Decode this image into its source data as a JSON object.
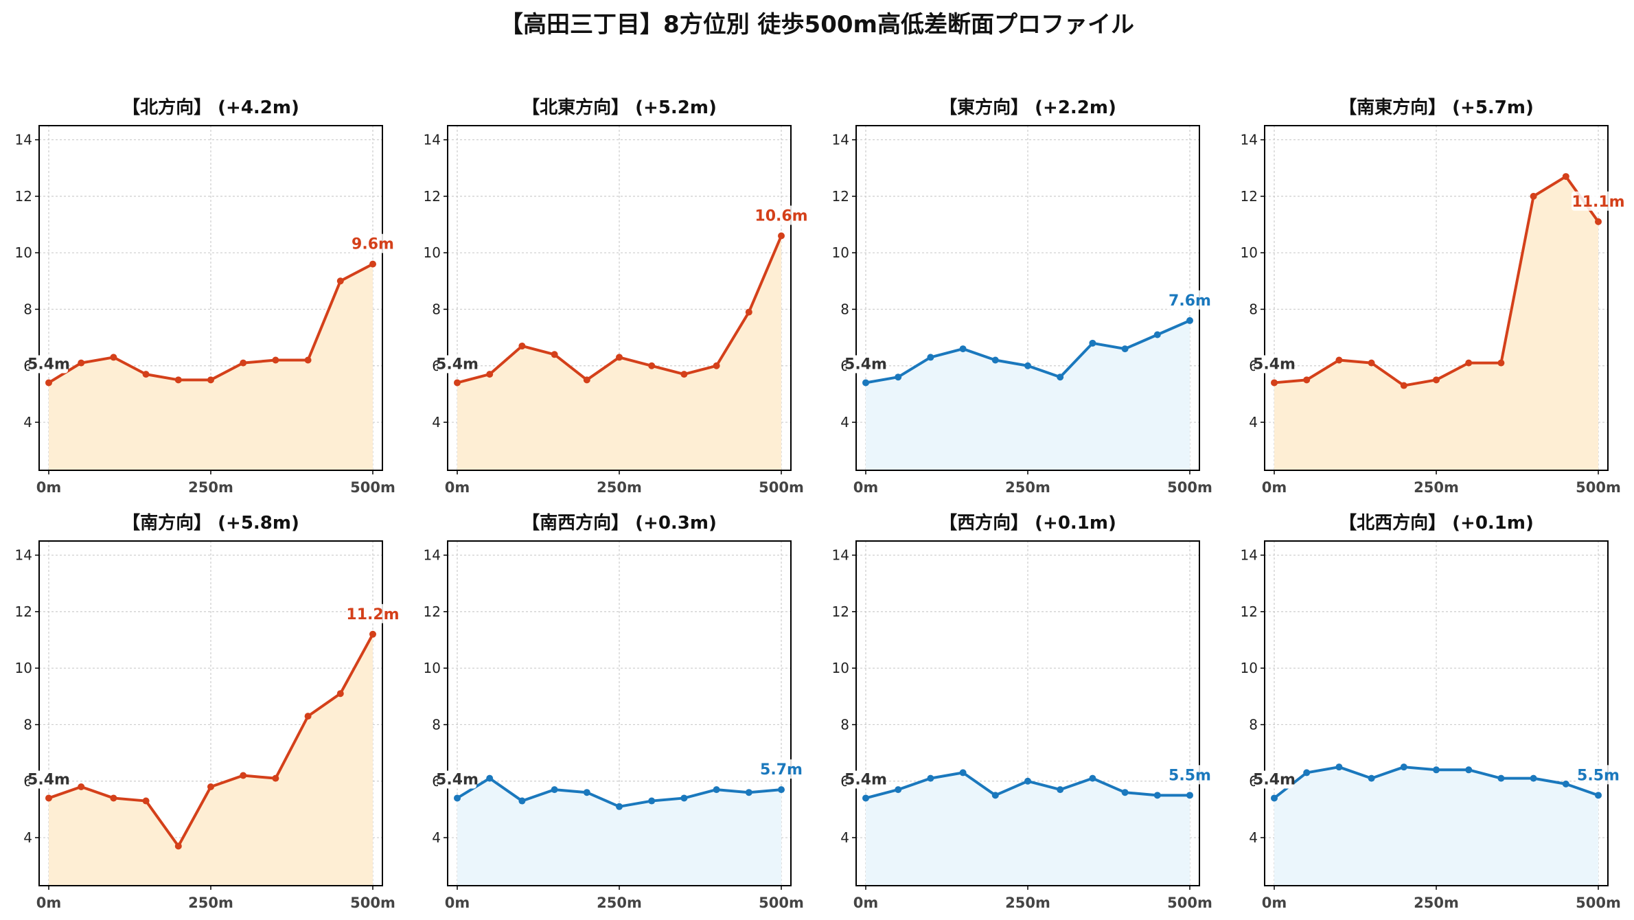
{
  "title": "【高田三丁目】8方位別 徒歩500m高低差断面プロファイル",
  "colors": {
    "up_line": "#d4401a",
    "up_fill": "#feeed4",
    "flat_line": "#1a78bd",
    "flat_fill": "#ebf6fc",
    "grid": "#cccccc",
    "start_label": "#333333"
  },
  "chart_data": [
    {
      "type": "area",
      "title": "【北方向】 (+4.2m)",
      "trend": "up",
      "x": [
        0,
        50,
        100,
        150,
        200,
        250,
        300,
        350,
        400,
        450,
        500
      ],
      "x_ticks": [
        "0m",
        "250m",
        "500m"
      ],
      "y_ticks": [
        "4",
        "6",
        "8",
        "10",
        "12",
        "14"
      ],
      "ylim": [
        2.3,
        14.5
      ],
      "values": [
        5.4,
        6.1,
        6.3,
        5.7,
        5.5,
        5.5,
        6.1,
        6.2,
        6.2,
        9.0,
        9.6
      ],
      "start_label": "5.4m",
      "end_label": "9.6m"
    },
    {
      "type": "area",
      "title": "【北東方向】 (+5.2m)",
      "trend": "up",
      "x": [
        0,
        50,
        100,
        150,
        200,
        250,
        300,
        350,
        400,
        450,
        500
      ],
      "x_ticks": [
        "0m",
        "250m",
        "500m"
      ],
      "y_ticks": [
        "4",
        "6",
        "8",
        "10",
        "12",
        "14"
      ],
      "ylim": [
        2.3,
        14.5
      ],
      "values": [
        5.4,
        5.7,
        6.7,
        6.4,
        5.5,
        6.3,
        6.0,
        5.7,
        6.0,
        7.9,
        10.6
      ],
      "start_label": "5.4m",
      "end_label": "10.6m"
    },
    {
      "type": "area",
      "title": "【東方向】 (+2.2m)",
      "trend": "flat",
      "x": [
        0,
        50,
        100,
        150,
        200,
        250,
        300,
        350,
        400,
        450,
        500
      ],
      "x_ticks": [
        "0m",
        "250m",
        "500m"
      ],
      "y_ticks": [
        "4",
        "6",
        "8",
        "10",
        "12",
        "14"
      ],
      "ylim": [
        2.3,
        14.5
      ],
      "values": [
        5.4,
        5.6,
        6.3,
        6.6,
        6.2,
        6.0,
        5.6,
        6.8,
        6.6,
        7.1,
        7.6
      ],
      "start_label": "5.4m",
      "end_label": "7.6m"
    },
    {
      "type": "area",
      "title": "【南東方向】 (+5.7m)",
      "trend": "up",
      "x": [
        0,
        50,
        100,
        150,
        200,
        250,
        300,
        350,
        400,
        450,
        500
      ],
      "x_ticks": [
        "0m",
        "250m",
        "500m"
      ],
      "y_ticks": [
        "4",
        "6",
        "8",
        "10",
        "12",
        "14"
      ],
      "ylim": [
        2.3,
        14.5
      ],
      "values": [
        5.4,
        5.5,
        6.2,
        6.1,
        5.3,
        5.5,
        6.1,
        6.1,
        12.0,
        12.7,
        11.1
      ],
      "start_label": "5.4m",
      "end_label": "11.1m"
    },
    {
      "type": "area",
      "title": "【南方向】 (+5.8m)",
      "trend": "up",
      "x": [
        0,
        50,
        100,
        150,
        200,
        250,
        300,
        350,
        400,
        450,
        500
      ],
      "x_ticks": [
        "0m",
        "250m",
        "500m"
      ],
      "y_ticks": [
        "4",
        "6",
        "8",
        "10",
        "12",
        "14"
      ],
      "ylim": [
        2.3,
        14.5
      ],
      "values": [
        5.4,
        5.8,
        5.4,
        5.3,
        3.7,
        5.8,
        6.2,
        6.1,
        8.3,
        9.1,
        11.2
      ],
      "start_label": "5.4m",
      "end_label": "11.2m"
    },
    {
      "type": "area",
      "title": "【南西方向】 (+0.3m)",
      "trend": "flat",
      "x": [
        0,
        50,
        100,
        150,
        200,
        250,
        300,
        350,
        400,
        450,
        500
      ],
      "x_ticks": [
        "0m",
        "250m",
        "500m"
      ],
      "y_ticks": [
        "4",
        "6",
        "8",
        "10",
        "12",
        "14"
      ],
      "ylim": [
        2.3,
        14.5
      ],
      "values": [
        5.4,
        6.1,
        5.3,
        5.7,
        5.6,
        5.1,
        5.3,
        5.4,
        5.7,
        5.6,
        5.7
      ],
      "start_label": "5.4m",
      "end_label": "5.7m"
    },
    {
      "type": "area",
      "title": "【西方向】 (+0.1m)",
      "trend": "flat",
      "x": [
        0,
        50,
        100,
        150,
        200,
        250,
        300,
        350,
        400,
        450,
        500
      ],
      "x_ticks": [
        "0m",
        "250m",
        "500m"
      ],
      "y_ticks": [
        "4",
        "6",
        "8",
        "10",
        "12",
        "14"
      ],
      "ylim": [
        2.3,
        14.5
      ],
      "values": [
        5.4,
        5.7,
        6.1,
        6.3,
        5.5,
        6.0,
        5.7,
        6.1,
        5.6,
        5.5,
        5.5
      ],
      "start_label": "5.4m",
      "end_label": "5.5m"
    },
    {
      "type": "area",
      "title": "【北西方向】 (+0.1m)",
      "trend": "flat",
      "x": [
        0,
        50,
        100,
        150,
        200,
        250,
        300,
        350,
        400,
        450,
        500
      ],
      "x_ticks": [
        "0m",
        "250m",
        "500m"
      ],
      "y_ticks": [
        "4",
        "6",
        "8",
        "10",
        "12",
        "14"
      ],
      "ylim": [
        2.3,
        14.5
      ],
      "values": [
        5.4,
        6.3,
        6.5,
        6.1,
        6.5,
        6.4,
        6.4,
        6.1,
        6.1,
        5.9,
        5.5
      ],
      "start_label": "5.4m",
      "end_label": "5.5m"
    }
  ]
}
